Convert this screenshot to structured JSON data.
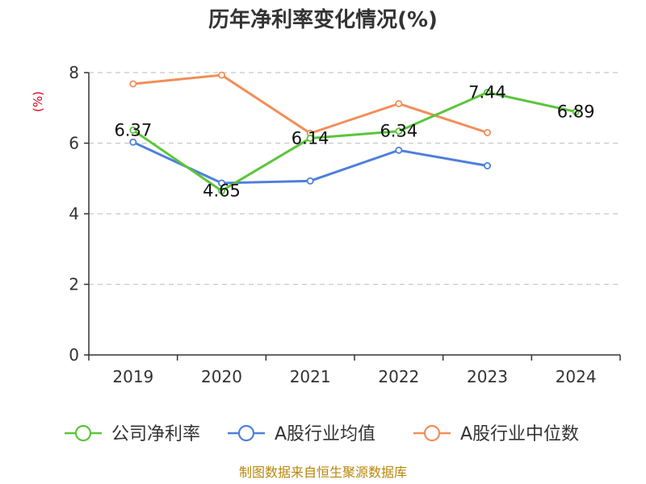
{
  "chart_data": {
    "type": "line",
    "title": "历年净利率变化情况(%)",
    "ylabel": "(%)",
    "xlabel": "",
    "categories": [
      "2019",
      "2020",
      "2021",
      "2022",
      "2023",
      "2024"
    ],
    "ylim": [
      0,
      8
    ],
    "yticks": [
      0,
      2,
      4,
      6,
      8
    ],
    "grid": true,
    "legend_position": "bottom",
    "series": [
      {
        "name": "公司净利率",
        "color": "#5bc53a",
        "values": [
          6.37,
          4.65,
          6.14,
          6.34,
          7.44,
          6.89
        ],
        "labels": [
          "6.37",
          "4.65",
          "6.14",
          "6.34",
          "7.44",
          "6.89"
        ]
      },
      {
        "name": "A股行业均值",
        "color": "#4e7fdb",
        "values": [
          6.03,
          4.87,
          4.93,
          5.8,
          5.36,
          null
        ]
      },
      {
        "name": "A股行业中位数",
        "color": "#f28e58",
        "values": [
          7.68,
          7.93,
          6.28,
          7.12,
          6.3,
          null
        ]
      }
    ],
    "source": "制图数据来自恒生聚源数据库"
  }
}
